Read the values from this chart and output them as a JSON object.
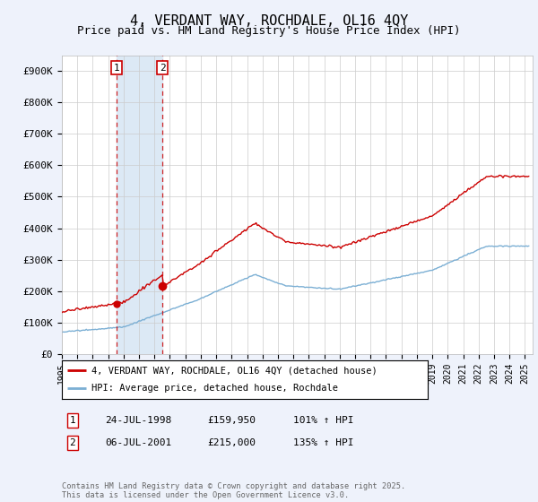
{
  "title": "4, VERDANT WAY, ROCHDALE, OL16 4QY",
  "subtitle": "Price paid vs. HM Land Registry's House Price Index (HPI)",
  "ylabel_ticks": [
    "£0",
    "£100K",
    "£200K",
    "£300K",
    "£400K",
    "£500K",
    "£600K",
    "£700K",
    "£800K",
    "£900K"
  ],
  "ytick_values": [
    0,
    100000,
    200000,
    300000,
    400000,
    500000,
    600000,
    700000,
    800000,
    900000
  ],
  "ylim": [
    0,
    950000
  ],
  "xlim_start": 1995.0,
  "xlim_end": 2025.5,
  "red_color": "#cc0000",
  "blue_color": "#7bafd4",
  "shade_color": "#dce9f5",
  "sale1_x": 1998.55,
  "sale1_y": 159950,
  "sale2_x": 2001.51,
  "sale2_y": 215000,
  "sale1_label": "1",
  "sale2_label": "2",
  "legend_line1": "4, VERDANT WAY, ROCHDALE, OL16 4QY (detached house)",
  "legend_line2": "HPI: Average price, detached house, Rochdale",
  "table_row1": [
    "1",
    "24-JUL-1998",
    "£159,950",
    "101% ↑ HPI"
  ],
  "table_row2": [
    "2",
    "06-JUL-2001",
    "£215,000",
    "135% ↑ HPI"
  ],
  "footnote": "Contains HM Land Registry data © Crown copyright and database right 2025.\nThis data is licensed under the Open Government Licence v3.0.",
  "background_color": "#eef2fb",
  "plot_bg_color": "#ffffff",
  "grid_color": "#cccccc",
  "title_fontsize": 11,
  "subtitle_fontsize": 9
}
